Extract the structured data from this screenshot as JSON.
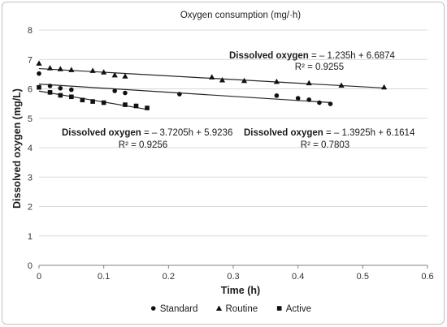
{
  "chart_data": {
    "type": "scatter",
    "title": "Oxygen consumption (mg/·h)",
    "xlabel": "Time (h)",
    "ylabel": "Dissolved oxygen (mg/L)",
    "xlim": [
      0,
      0.6
    ],
    "ylim": [
      0,
      8
    ],
    "x_ticks": [
      "0",
      "0.1",
      "0.2",
      "0.3",
      "0.4",
      "0.5",
      "0.6"
    ],
    "y_ticks": [
      "0",
      "1",
      "2",
      "3",
      "4",
      "5",
      "6",
      "7",
      "8"
    ],
    "grid": "horizontal",
    "legend_position": "bottom",
    "series": [
      {
        "name": "Standard",
        "marker": "circle",
        "points": [
          [
            0,
            6.52
          ],
          [
            0.017,
            6.1
          ],
          [
            0.033,
            6.02
          ],
          [
            0.05,
            5.97
          ],
          [
            0.117,
            5.93
          ],
          [
            0.133,
            5.86
          ],
          [
            0.217,
            5.82
          ],
          [
            0.367,
            5.77
          ],
          [
            0.4,
            5.68
          ],
          [
            0.417,
            5.63
          ],
          [
            0.433,
            5.53
          ],
          [
            0.45,
            5.49
          ]
        ],
        "trendline": {
          "slope": -1.3925,
          "intercept": 6.1614
        },
        "equation_label": "Dissolved oxygen",
        "equation_rest": " = – 1.3925h + 6.1614",
        "r2_label": "R² = 0.7803"
      },
      {
        "name": "Routine",
        "marker": "triangle",
        "points": [
          [
            0,
            6.87
          ],
          [
            0.017,
            6.71
          ],
          [
            0.033,
            6.68
          ],
          [
            0.05,
            6.65
          ],
          [
            0.083,
            6.62
          ],
          [
            0.1,
            6.57
          ],
          [
            0.117,
            6.47
          ],
          [
            0.133,
            6.43
          ],
          [
            0.267,
            6.4
          ],
          [
            0.283,
            6.3
          ],
          [
            0.317,
            6.28
          ],
          [
            0.367,
            6.25
          ],
          [
            0.417,
            6.2
          ],
          [
            0.467,
            6.12
          ],
          [
            0.533,
            6.06
          ]
        ],
        "trendline": {
          "slope": -1.235,
          "intercept": 6.6874
        },
        "equation_label": "Dissolved oxygen",
        "equation_rest": " = – 1.235h + 6.6874",
        "r2_label": "R² = 0.9255"
      },
      {
        "name": "Active",
        "marker": "square",
        "points": [
          [
            0,
            6.05
          ],
          [
            0.017,
            5.88
          ],
          [
            0.033,
            5.78
          ],
          [
            0.05,
            5.73
          ],
          [
            0.067,
            5.62
          ],
          [
            0.083,
            5.57
          ],
          [
            0.1,
            5.53
          ],
          [
            0.133,
            5.46
          ],
          [
            0.15,
            5.42
          ],
          [
            0.167,
            5.35
          ]
        ],
        "trendline": {
          "slope": -3.7205,
          "intercept": 5.9236
        },
        "equation_label": "Dissolved oxygen",
        "equation_rest": " = – 3.7205h + 5.9236",
        "r2_label": "R² = 0.9256"
      }
    ]
  }
}
